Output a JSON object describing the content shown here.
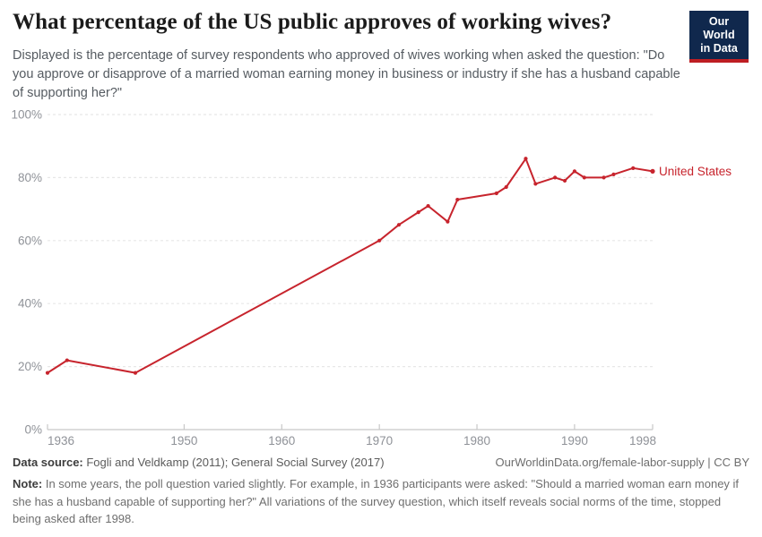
{
  "header": {
    "title": "What percentage of the US public approves of working wives?",
    "subtitle": "Displayed is the percentage of survey respondents who approved of wives working when asked the question: \"Do you approve or disapprove of a married woman earning money in business or industry if she has a husband capable of supporting her?\"",
    "logo": {
      "line1": "Our World",
      "line2": "in Data",
      "bg_color": "#10284d",
      "stripe_color": "#be1e23"
    }
  },
  "chart_data": {
    "type": "line",
    "title": "What percentage of the US public approves of working wives?",
    "x": [
      1936,
      1938,
      1945,
      1970,
      1972,
      1974,
      1975,
      1977,
      1978,
      1982,
      1983,
      1985,
      1986,
      1988,
      1989,
      1990,
      1991,
      1993,
      1994,
      1996,
      1998
    ],
    "series": [
      {
        "name": "United States",
        "color": "#c7242d",
        "values": [
          18,
          22,
          18,
          60,
          65,
          69,
          71,
          66,
          73,
          75,
          77,
          86,
          78,
          80,
          79,
          82,
          80,
          80,
          81,
          83,
          82
        ]
      }
    ],
    "xlim": [
      1936,
      1998
    ],
    "ylim": [
      0,
      100
    ],
    "x_ticks": [
      1936,
      1950,
      1960,
      1970,
      1980,
      1990,
      1998
    ],
    "y_ticks": [
      0,
      20,
      40,
      60,
      80,
      100
    ],
    "y_tick_suffix": "%",
    "xlabel": "",
    "ylabel": "",
    "grid": "horizontal-dashed",
    "legend": "inline-end-label",
    "colors": {
      "gridline": "#e7e7e7",
      "axis_line": "#c8c8c8",
      "tick_text": "#8f9298"
    }
  },
  "footer": {
    "datasource_label": "Data source:",
    "datasource_text": " Fogli and Veldkamp (2011); General Social Survey (2017)",
    "link": "OurWorldinData.org/female-labor-supply | CC BY",
    "note_label": "Note:",
    "note_text": " In some years, the poll question varied slightly. For example, in 1936 participants were asked: \"Should a married woman earn money if she has a husband capable of supporting her?\" All variations of the survey question, which itself reveals social norms of the time, stopped being asked after 1998."
  }
}
